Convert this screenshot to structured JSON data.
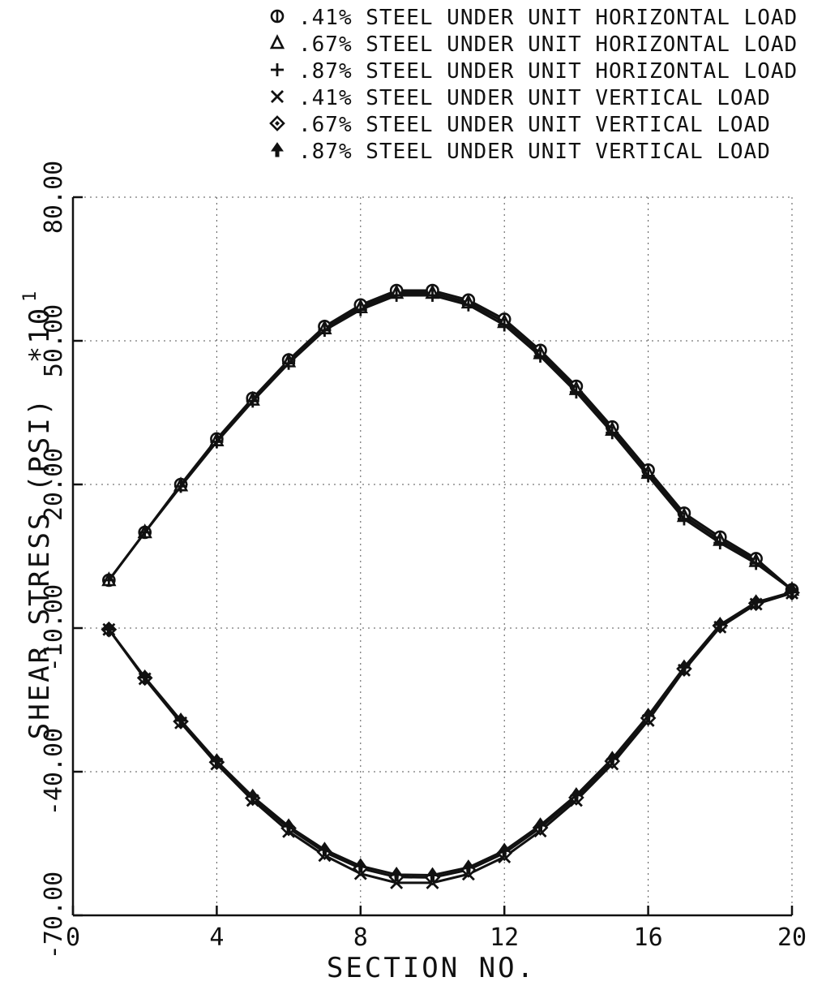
{
  "chart_data": {
    "type": "line",
    "xlabel": "SECTION NO.",
    "ylabel": "SHEAR STRESS (PSI)",
    "y_multiplier_label": "*10",
    "y_multiplier_exponent": "1",
    "xlim": [
      0,
      20
    ],
    "ylim": [
      -70,
      80
    ],
    "x_ticks": [
      0,
      4,
      8,
      12,
      16,
      20
    ],
    "x_tick_labels": [
      "0",
      "4",
      "8",
      "12",
      "16",
      "20"
    ],
    "y_ticks": [
      -70,
      -40,
      -10,
      20,
      50,
      80
    ],
    "y_tick_labels": [
      "-70.00",
      "-40.00",
      "-10.00",
      "20.00",
      "50.00",
      "80.00"
    ],
    "grid": true,
    "legend_position": "top-right",
    "x": [
      1,
      2,
      3,
      4,
      5,
      6,
      7,
      8,
      9,
      10,
      11,
      12,
      13,
      14,
      15,
      16,
      17,
      18,
      19,
      20
    ],
    "series": [
      {
        "name": ".41% STEEL UNDER UNIT HORIZONTAL LOAD",
        "marker": "circle-bar",
        "values": [
          0,
          10,
          20,
          29.5,
          38,
          46,
          53,
          57.5,
          60.5,
          60.5,
          58.5,
          54.5,
          48,
          40.5,
          32,
          23,
          14,
          9,
          4.5,
          -2
        ]
      },
      {
        "name": ".67% STEEL UNDER UNIT HORIZONTAL LOAD",
        "marker": "triangle",
        "values": [
          0,
          10,
          19.8,
          29.2,
          37.7,
          45.7,
          52.6,
          57,
          60,
          60,
          58,
          53.9,
          47.4,
          39.9,
          31.4,
          22.4,
          13.4,
          8.4,
          4,
          -2
        ]
      },
      {
        "name": ".87% STEEL UNDER UNIT HORIZONTAL LOAD",
        "marker": "plus",
        "values": [
          0,
          10,
          19.6,
          28.9,
          37.4,
          45.3,
          52.2,
          56.5,
          59.5,
          59.5,
          57.5,
          53.3,
          46.8,
          39.3,
          30.8,
          21.8,
          12.8,
          7.8,
          3.5,
          -2
        ]
      },
      {
        "name": ".41% STEEL UNDER UNIT VERTICAL LOAD",
        "marker": "x",
        "values": [
          -10.3,
          -20.6,
          -29.8,
          -38.4,
          -46,
          -52.5,
          -57.5,
          -61.3,
          -63.2,
          -63.2,
          -61.4,
          -57.8,
          -52.4,
          -46,
          -38.4,
          -29.3,
          -18.8,
          -9.8,
          -5,
          -2.7
        ]
      },
      {
        "name": ".67% STEEL UNDER UNIT VERTICAL LOAD",
        "marker": "diamond",
        "values": [
          -10.3,
          -20.4,
          -29.5,
          -38,
          -45.5,
          -51.8,
          -56.8,
          -60.2,
          -62,
          -62.1,
          -60.5,
          -57,
          -51.7,
          -45.4,
          -37.8,
          -28.8,
          -18.5,
          -9.5,
          -4.8,
          -2.6
        ]
      },
      {
        "name": ".87% STEEL UNDER UNIT VERTICAL LOAD",
        "marker": "arrow",
        "values": [
          -10.3,
          -20.3,
          -29.3,
          -37.8,
          -45.2,
          -51.4,
          -56.3,
          -59.7,
          -61.5,
          -61.6,
          -60,
          -56.5,
          -51.2,
          -44.9,
          -37.3,
          -28.3,
          -18.2,
          -9.3,
          -4.6,
          -2.5
        ]
      }
    ]
  }
}
